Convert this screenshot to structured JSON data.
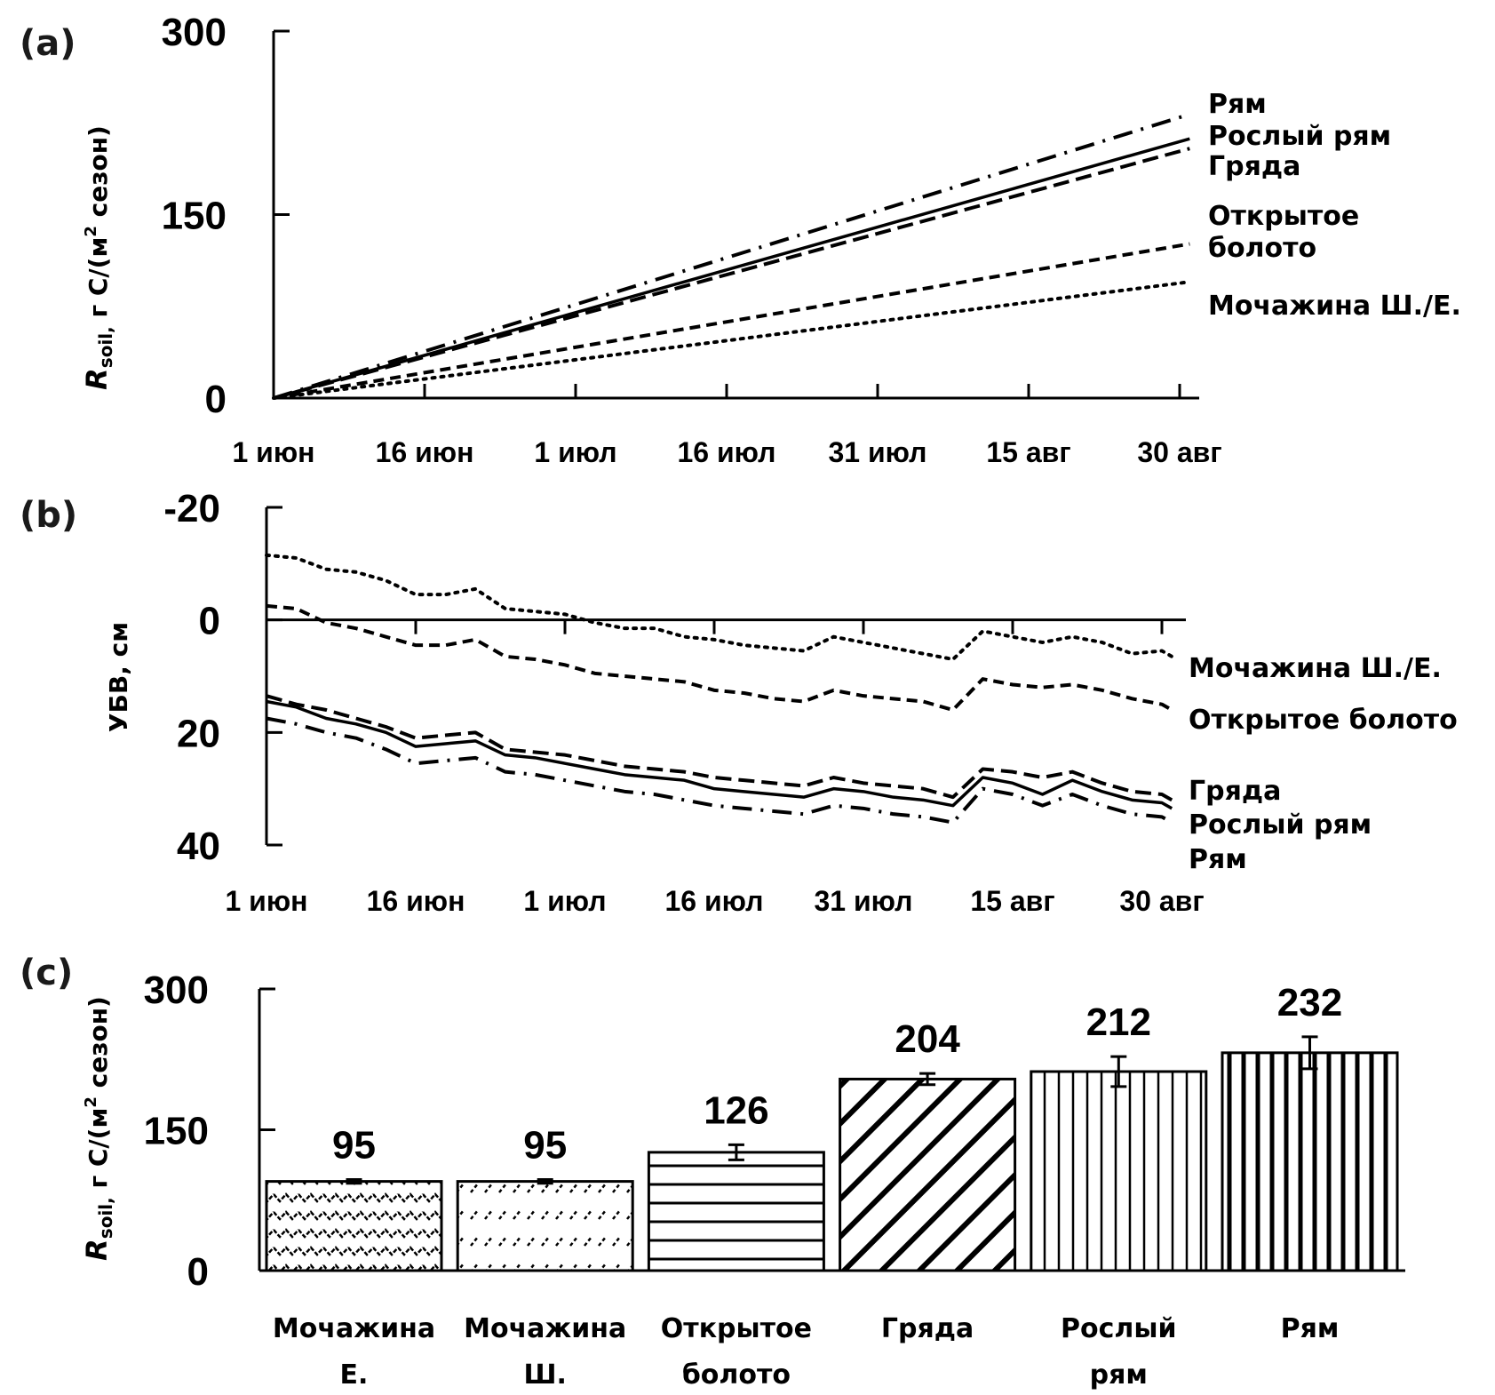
{
  "chart_data": [
    {
      "panel": "(a)",
      "type": "line",
      "title": "",
      "ylabel": "R_soil, г C/(м² сезон)",
      "ylabel_main": "R",
      "ylabel_sub": "soil,",
      "ylabel_rest": " г C/(м",
      "ylabel_sup": "2",
      "ylabel_end": " сезон)",
      "xlabel": "",
      "ylim": [
        0,
        300
      ],
      "yticks": [
        "0",
        "150",
        "300"
      ],
      "ytick_values": [
        0,
        150,
        300
      ],
      "xticks": [
        "1 июн",
        "16 июн",
        "1 июл",
        "16 июл",
        "31 июл",
        "15 авг",
        "30 авг"
      ],
      "xtick_days": [
        0,
        15,
        30,
        45,
        60,
        75,
        90
      ],
      "x_range_days": [
        0,
        91
      ],
      "series": [
        {
          "name": "Рям",
          "style": "dashdot",
          "x": [
            0,
            91
          ],
          "y": [
            0,
            232
          ]
        },
        {
          "name": "Рослый рям",
          "style": "solid",
          "x": [
            0,
            91
          ],
          "y": [
            0,
            212
          ]
        },
        {
          "name": "Гряда",
          "style": "dashed",
          "x": [
            0,
            91
          ],
          "y": [
            0,
            204
          ]
        },
        {
          "name": "Открытое болото",
          "style": "shortdash",
          "x": [
            0,
            91
          ],
          "y": [
            0,
            126
          ]
        },
        {
          "name": "Мочажина Ш./Е.",
          "style": "dotted",
          "x": [
            0,
            91
          ],
          "y": [
            0,
            95
          ]
        }
      ],
      "labels": [
        {
          "text": "Рям",
          "series": "Рям"
        },
        {
          "text": "Рослый рям",
          "series": "Рослый рям"
        },
        {
          "text": "Гряда",
          "series": "Гряда"
        },
        {
          "text": "Открытое",
          "series": "Открытое болото"
        },
        {
          "text": "болото",
          "series": "Открытое болото"
        },
        {
          "text": "Мочажина Ш./Е.",
          "series": "Мочажина Ш./Е."
        }
      ]
    },
    {
      "panel": "(b)",
      "type": "line",
      "title": "",
      "ylabel": "УБВ, см",
      "xlabel": "",
      "ylim": [
        -20,
        40
      ],
      "y_inverted": true,
      "yticks": [
        "-20",
        "0",
        "20",
        "40"
      ],
      "ytick_values": [
        -20,
        0,
        20,
        40
      ],
      "xticks": [
        "1 июн",
        "16 июн",
        "1 июл",
        "16 июл",
        "31 июл",
        "15 авг",
        "30 авг"
      ],
      "xtick_days": [
        0,
        15,
        30,
        45,
        60,
        75,
        90
      ],
      "x_range_days": [
        0,
        92
      ],
      "series": [
        {
          "name": "Мочажина Ш./Е.",
          "style": "dotted",
          "x": [
            0,
            3,
            6,
            9,
            12,
            15,
            18,
            21,
            24,
            27,
            30,
            33,
            36,
            39,
            42,
            45,
            48,
            51,
            54,
            57,
            60,
            63,
            66,
            69,
            72,
            75,
            78,
            81,
            84,
            87,
            90,
            91
          ],
          "y": [
            -11.5,
            -11,
            -9,
            -8.5,
            -7,
            -4.5,
            -4.5,
            -5.5,
            -2,
            -1.5,
            -1,
            0.5,
            1.5,
            1.5,
            3,
            3.5,
            4.5,
            5,
            5.5,
            3,
            4,
            5,
            6,
            7,
            2,
            3,
            4,
            3,
            4,
            6,
            5.5,
            6.5
          ]
        },
        {
          "name": "Открытое болото",
          "style": "shortdash",
          "x": [
            0,
            3,
            6,
            9,
            12,
            15,
            18,
            21,
            24,
            27,
            30,
            33,
            36,
            39,
            42,
            45,
            48,
            51,
            54,
            57,
            60,
            63,
            66,
            69,
            72,
            75,
            78,
            81,
            84,
            87,
            90,
            91
          ],
          "y": [
            -2.5,
            -2,
            0.5,
            1.5,
            3,
            4.5,
            4.5,
            3.5,
            6.5,
            7,
            8,
            9.5,
            10,
            10.5,
            11,
            12.5,
            13,
            14,
            14.5,
            12.5,
            13.5,
            14,
            14.5,
            16,
            10.5,
            11.5,
            12,
            11.5,
            12.5,
            14,
            15,
            16
          ]
        },
        {
          "name": "Гряда",
          "style": "dashed",
          "x": [
            0,
            3,
            6,
            9,
            12,
            15,
            18,
            21,
            24,
            27,
            30,
            33,
            36,
            39,
            42,
            45,
            48,
            51,
            54,
            57,
            60,
            63,
            66,
            69,
            72,
            75,
            78,
            81,
            84,
            87,
            90,
            91
          ],
          "y": [
            13.5,
            15,
            16,
            17.5,
            19,
            21,
            20.5,
            20,
            23,
            23.5,
            24,
            25,
            26,
            26.5,
            27,
            28,
            28.5,
            29,
            29.5,
            28,
            29,
            29.5,
            30,
            31.5,
            26.5,
            27,
            28,
            27,
            29,
            30.5,
            31,
            32
          ]
        },
        {
          "name": "Рослый рям",
          "style": "solid",
          "x": [
            0,
            3,
            6,
            9,
            12,
            15,
            18,
            21,
            24,
            27,
            30,
            33,
            36,
            39,
            42,
            45,
            48,
            51,
            54,
            57,
            60,
            63,
            66,
            69,
            72,
            75,
            78,
            81,
            84,
            87,
            90,
            91
          ],
          "y": [
            14.5,
            15.5,
            17.5,
            18.5,
            20,
            22.5,
            22,
            21.5,
            24,
            24.5,
            25.5,
            26.5,
            27.5,
            28,
            28.5,
            30,
            30.5,
            31,
            31.5,
            30,
            30.5,
            31.5,
            32,
            33,
            28,
            29,
            31,
            28.5,
            30.5,
            32,
            32.5,
            33.5
          ]
        },
        {
          "name": "Рям",
          "style": "dashdot",
          "x": [
            0,
            3,
            6,
            9,
            12,
            15,
            18,
            21,
            24,
            27,
            30,
            33,
            36,
            39,
            42,
            45,
            48,
            51,
            54,
            57,
            60,
            63,
            66,
            69,
            72,
            75,
            78,
            81,
            84,
            87,
            90,
            91
          ],
          "y": [
            17.5,
            18.5,
            20,
            21,
            23,
            25.5,
            25,
            24.5,
            27,
            27.5,
            28.5,
            29.5,
            30.5,
            31,
            32,
            33,
            33.5,
            34,
            34.5,
            33,
            33.5,
            34.5,
            35,
            36,
            30,
            31,
            33,
            31,
            33,
            34.5,
            35,
            36
          ]
        }
      ],
      "labels": [
        {
          "text": "Мочажина Ш./Е."
        },
        {
          "text": "Открытое болото"
        },
        {
          "text": "Гряда"
        },
        {
          "text": "Рослый рям"
        },
        {
          "text": "Рям"
        }
      ]
    },
    {
      "panel": "(c)",
      "type": "bar",
      "title": "",
      "ylabel": "R_soil, г C/(м² сезон)",
      "ylabel_main": "R",
      "ylabel_sub": "soil,",
      "ylabel_rest": " г C/(м",
      "ylabel_sup": "2",
      "ylabel_end": " сезон)",
      "xlabel": "",
      "ylim": [
        0,
        300
      ],
      "yticks": [
        "0",
        "150",
        "300"
      ],
      "ytick_values": [
        0,
        150,
        300
      ],
      "categories": [
        {
          "line1": "Мочажина",
          "line2": "Е."
        },
        {
          "line1": "Мочажина",
          "line2": "Ш."
        },
        {
          "line1": "Открытое",
          "line2": "болото"
        },
        {
          "line1": "Гряда",
          "line2": ""
        },
        {
          "line1": "Рослый",
          "line2": "рям"
        },
        {
          "line1": "Рям",
          "line2": ""
        }
      ],
      "values": [
        95,
        95,
        126,
        204,
        212,
        232
      ],
      "value_labels": [
        "95",
        "95",
        "126",
        "204",
        "212",
        "232"
      ],
      "errors": [
        2,
        2,
        8,
        6,
        16,
        17
      ],
      "patterns": [
        "zigzag",
        "dashed-diagonal",
        "horizontal",
        "diagonal",
        "vertical-thin",
        "vertical-thick"
      ]
    }
  ],
  "panel_labels": [
    "(a)",
    "(b)",
    "(c)"
  ]
}
